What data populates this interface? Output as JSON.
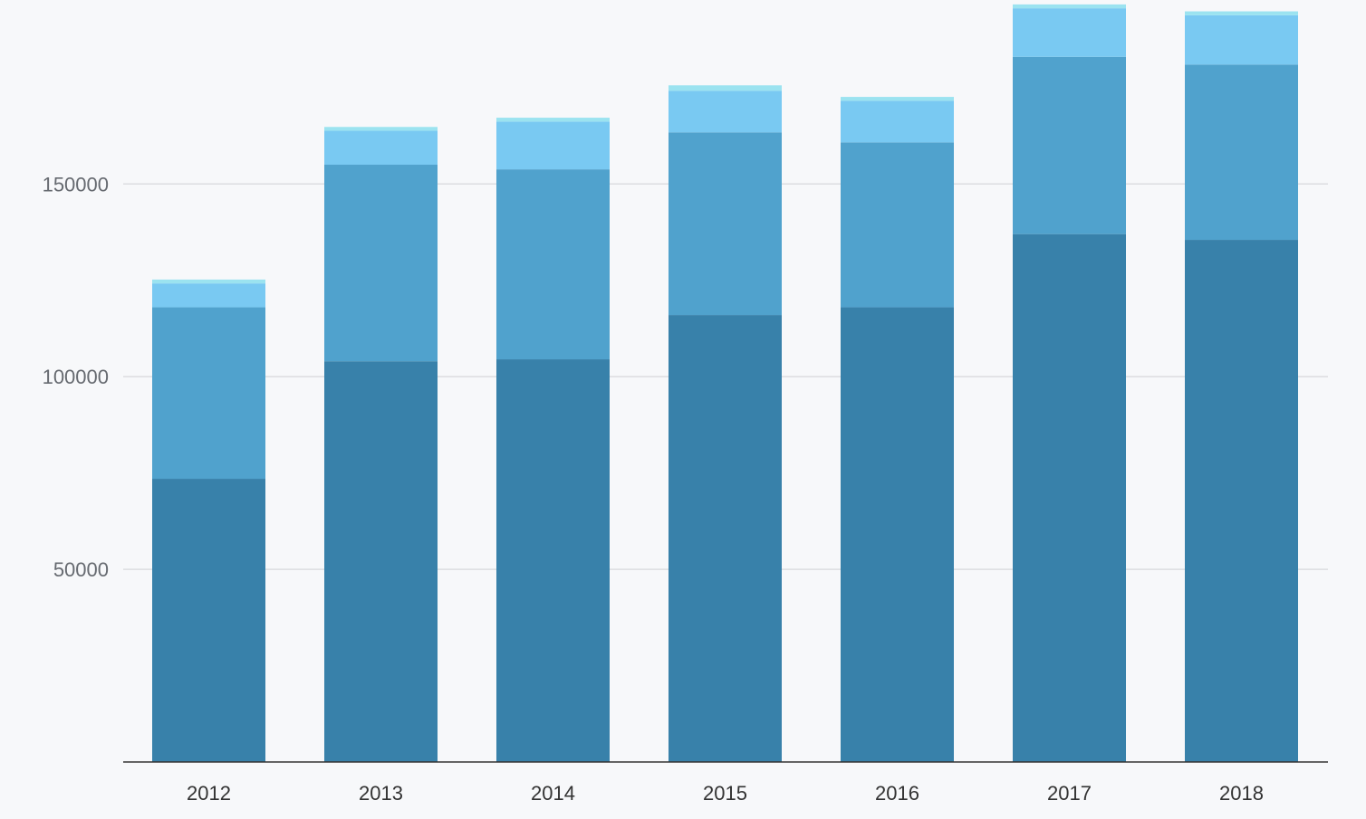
{
  "chart_data": {
    "type": "bar",
    "stacked": true,
    "categories": [
      "2012",
      "2013",
      "2014",
      "2015",
      "2016",
      "2017",
      "2018"
    ],
    "series": [
      {
        "color": "#3881aa",
        "values": [
          73500,
          104000,
          104500,
          116000,
          118000,
          137000,
          135500
        ]
      },
      {
        "color": "#50a2cd",
        "values": [
          44500,
          51000,
          49300,
          47400,
          42800,
          46000,
          45500
        ]
      },
      {
        "color": "#79c9f2",
        "values": [
          6200,
          8800,
          12400,
          10800,
          10800,
          12600,
          12800
        ]
      },
      {
        "color": "#9be3f0",
        "values": [
          1000,
          1000,
          1000,
          1400,
          1000,
          1000,
          1000
        ]
      }
    ],
    "ylim": [
      0,
      197000
    ],
    "yticks": [
      50000,
      100000,
      150000
    ],
    "ytick_labels": [
      "50000",
      "100000",
      "150000"
    ],
    "grid": true,
    "title": "",
    "xlabel": "",
    "ylabel": ""
  },
  "colors": {
    "background": "#f7f8fa",
    "gridline": "#dcdde0",
    "axis": "#333333"
  }
}
